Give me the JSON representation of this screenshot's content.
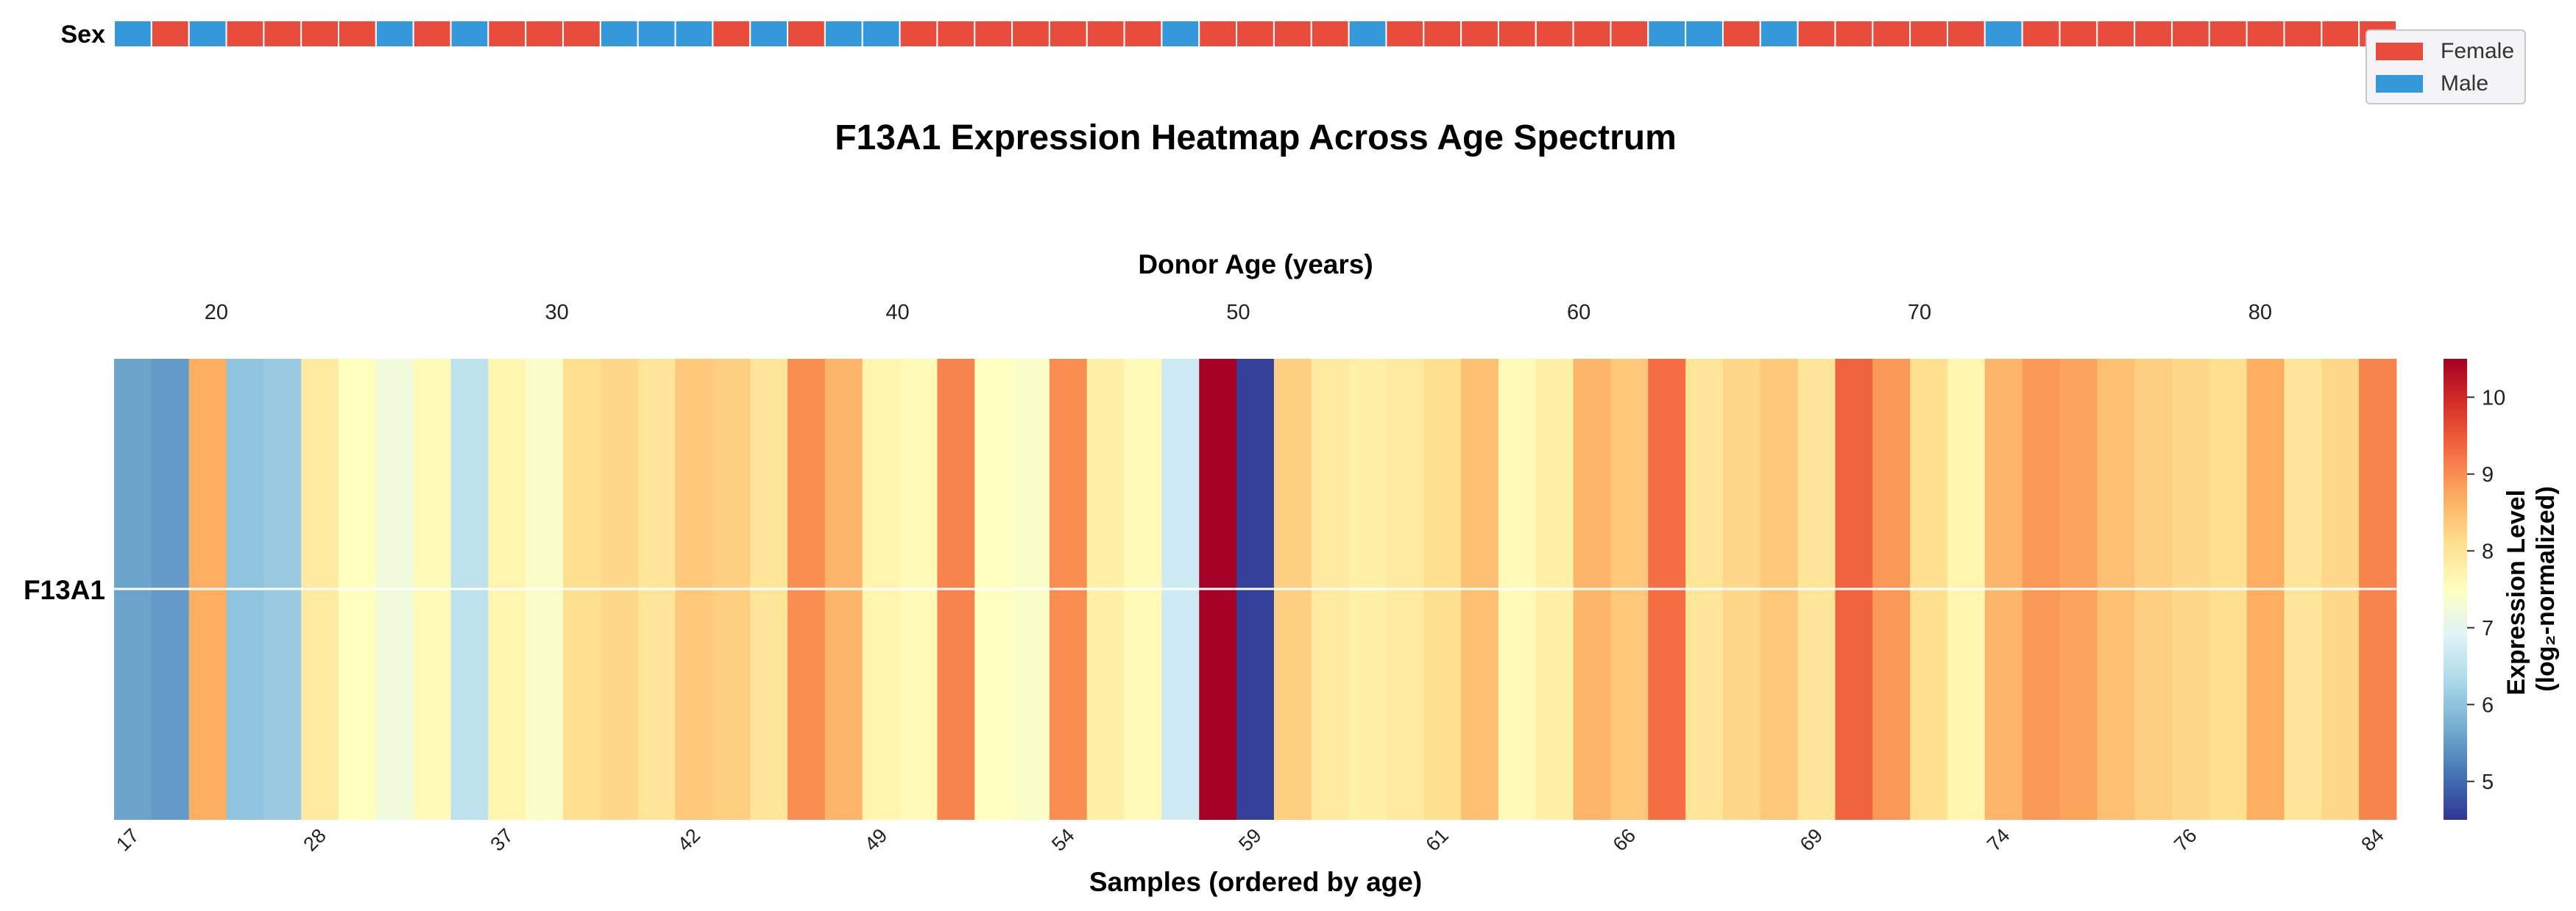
{
  "chart_data": {
    "type": "heatmap",
    "title": "F13A1 Expression Heatmap Across Age Spectrum",
    "top_axis_label": "Donor Age (years)",
    "top_axis_ticks": [
      20,
      30,
      40,
      50,
      60,
      70,
      80
    ],
    "top_axis_range": [
      17,
      84
    ],
    "xlabel": "Samples (ordered by age)",
    "row_label": "F13A1",
    "sex_row_label": "Sex",
    "colorbar": {
      "label_line1": "Expression Level",
      "label_line2": "(log₂-normalized)",
      "min": 4.5,
      "max": 10.5,
      "ticks": [
        5,
        6,
        7,
        8,
        9,
        10
      ],
      "colormap": "RdYlBu_r"
    },
    "legend": [
      {
        "label": "Female",
        "color": "#e74c3c"
      },
      {
        "label": "Male",
        "color": "#3498db"
      }
    ],
    "sample_tick_labels": [
      "17",
      "28",
      "37",
      "42",
      "49",
      "54",
      "59",
      "61",
      "66",
      "69",
      "74",
      "76",
      "84"
    ],
    "sample_tick_indices": [
      0,
      5,
      10,
      15,
      20,
      25,
      30,
      35,
      40,
      45,
      50,
      55,
      60
    ],
    "n_samples": 61,
    "sex": [
      "M",
      "F",
      "M",
      "F",
      "F",
      "F",
      "F",
      "M",
      "F",
      "M",
      "F",
      "F",
      "F",
      "M",
      "M",
      "M",
      "F",
      "M",
      "F",
      "M",
      "M",
      "F",
      "F",
      "F",
      "F",
      "F",
      "F",
      "F",
      "M",
      "F",
      "F",
      "F",
      "F",
      "M",
      "F",
      "F",
      "F",
      "F",
      "F",
      "F",
      "F",
      "M",
      "M",
      "F",
      "M",
      "F",
      "F",
      "F",
      "F",
      "F",
      "M",
      "F",
      "F",
      "F",
      "F",
      "F",
      "F",
      "F",
      "F",
      "F",
      "F"
    ],
    "values": [
      5.6,
      5.5,
      8.7,
      6.0,
      6.1,
      7.9,
      7.5,
      7.2,
      7.6,
      6.5,
      7.7,
      7.4,
      8.1,
      8.2,
      8.0,
      8.4,
      8.3,
      8.0,
      9.0,
      8.6,
      7.7,
      7.6,
      9.1,
      7.5,
      7.4,
      9.0,
      7.8,
      7.6,
      6.7,
      10.5,
      4.6,
      8.3,
      7.9,
      7.8,
      7.9,
      8.1,
      8.5,
      7.6,
      7.8,
      8.6,
      8.4,
      9.3,
      8.0,
      8.2,
      8.4,
      8.0,
      9.4,
      8.9,
      8.1,
      7.7,
      8.6,
      8.9,
      8.8,
      8.5,
      8.3,
      8.2,
      8.1,
      8.7,
      8.0,
      8.2,
      9.1
    ]
  }
}
